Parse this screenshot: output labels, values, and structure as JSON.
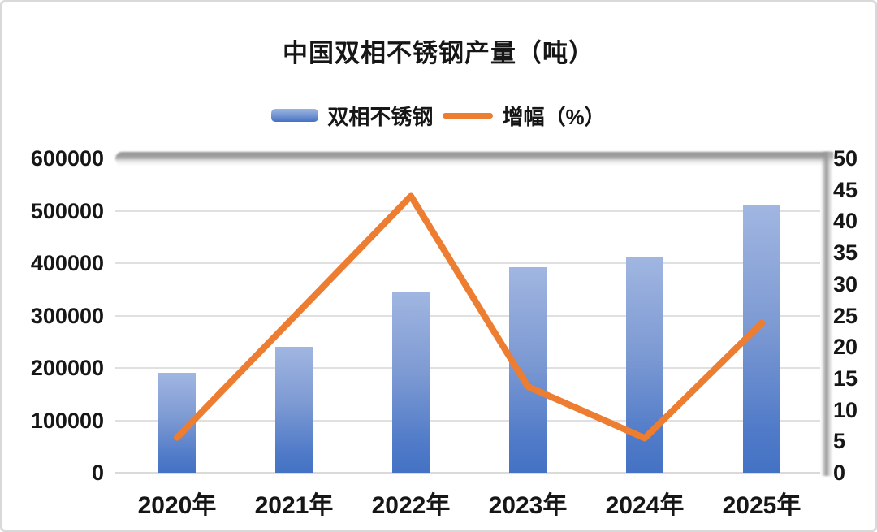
{
  "title": "中国双相不锈钢产量（吨）",
  "legend": {
    "bar_label": "双相不锈钢",
    "line_label": "增幅（%）"
  },
  "colors": {
    "bar_top": "#9FB5E0",
    "bar_bottom": "#4472C4",
    "line": "#ED7D31",
    "gridline": "#E0E0E0",
    "text": "#161616",
    "frame_border": "#D9D9D9"
  },
  "chart_data": {
    "type": "bar",
    "subtype": "combo-bar-line-dual-axis",
    "title": "中国双相不锈钢产量（吨）",
    "categories": [
      "2020年",
      "2021年",
      "2022年",
      "2023年",
      "2024年",
      "2025年"
    ],
    "series": [
      {
        "name": "双相不锈钢",
        "type": "bar",
        "axis": "left",
        "values": [
          190000,
          240000,
          345000,
          392000,
          412000,
          510000
        ]
      },
      {
        "name": "增幅（%）",
        "type": "line",
        "axis": "right",
        "values": [
          5.6,
          24.8,
          44.0,
          13.7,
          5.5,
          23.8
        ]
      }
    ],
    "left_axis": {
      "min": 0,
      "max": 600000,
      "step": 100000,
      "tick_labels": [
        "0",
        "100000",
        "200000",
        "300000",
        "400000",
        "500000",
        "600000"
      ]
    },
    "right_axis": {
      "min": 0,
      "max": 50,
      "step": 5,
      "tick_labels": [
        "0",
        "5",
        "10",
        "15",
        "20",
        "25",
        "30",
        "35",
        "40",
        "45",
        "50"
      ]
    },
    "grid": true,
    "legend_position": "top",
    "xlabel": "",
    "ylabel": ""
  }
}
